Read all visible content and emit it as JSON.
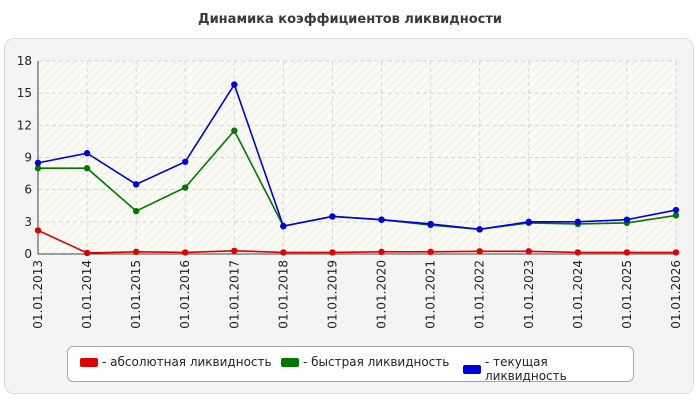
{
  "chart_data": {
    "type": "line",
    "title": "Динамика коэффициентов ликвидности",
    "xlabel": "",
    "ylabel": "",
    "ylim": [
      0,
      18
    ],
    "yticks": [
      0,
      3,
      6,
      9,
      12,
      15,
      18
    ],
    "grid": true,
    "legend_position": "bottom",
    "categories": [
      "01.01.2013",
      "01.01.2014",
      "01.01.2015",
      "01.01.2016",
      "01.01.2017",
      "01.01.2018",
      "01.01.2019",
      "01.01.2020",
      "01.01.2021",
      "01.01.2022",
      "01.01.2023",
      "01.01.2024",
      "01.01.2025",
      "01.01.2026"
    ],
    "series": [
      {
        "name": "- абсолютная ликвидность",
        "color": "#dd0000",
        "values": [
          2.2,
          0.1,
          0.2,
          0.15,
          0.3,
          0.15,
          0.15,
          0.2,
          0.2,
          0.25,
          0.25,
          0.15,
          0.15,
          0.15
        ]
      },
      {
        "name": "- быстрая ликвидность",
        "color": "#007700",
        "values": [
          8.0,
          8.0,
          4.0,
          6.2,
          11.5,
          2.6,
          3.5,
          3.2,
          2.7,
          2.3,
          2.9,
          2.8,
          2.9,
          3.6
        ]
      },
      {
        "name": "- текущая ликвидность",
        "color": "#0000dd",
        "values": [
          8.5,
          9.4,
          6.5,
          8.6,
          15.8,
          2.6,
          3.5,
          3.2,
          2.8,
          2.3,
          3.0,
          3.0,
          3.2,
          4.1
        ]
      }
    ]
  }
}
